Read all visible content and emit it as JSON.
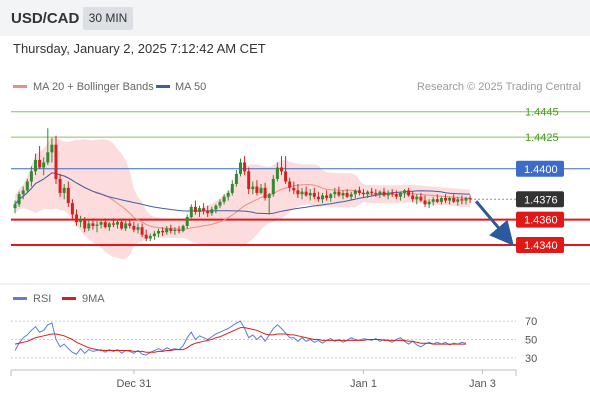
{
  "header": {
    "symbol": "USD/CAD",
    "interval": "30 MIN",
    "datetime": "Thursday, January 2, 2025 7:12:42 AM CET"
  },
  "credit": "Research © 2025 Trading Central",
  "colors": {
    "bollinger_fill": "#fcdcdc",
    "ma20": "#f28b82",
    "ma50": "#3c5ea8",
    "bull": "#2e8b2e",
    "bear": "#d62020",
    "resistance": "#86c45a",
    "pivot": "#3c6cc8",
    "support": "#e01818",
    "rsi": "#5b7fd6",
    "rsi_ma": "#d62020"
  },
  "chart_data": [
    {
      "type": "candlestick",
      "legend": [
        {
          "label": "MA 20 + Bollinger Bands",
          "color": "#f28b82"
        },
        {
          "label": "MA 50",
          "color": "#3c5ea8"
        }
      ],
      "ylim": [
        1.4325,
        1.4455
      ],
      "levels": [
        {
          "value": 1.4445,
          "label": "1.4445",
          "kind": "resistance"
        },
        {
          "value": 1.4425,
          "label": "1.4425",
          "kind": "resistance"
        },
        {
          "value": 1.44,
          "label": "1.4400",
          "kind": "pivot"
        },
        {
          "value": 1.436,
          "label": "1.4360",
          "kind": "support"
        },
        {
          "value": 1.434,
          "label": "1.4340",
          "kind": "support"
        }
      ],
      "last_price": {
        "value": 1.4376,
        "label": "1.4376"
      },
      "forecast_target": 1.434,
      "x_ticks": [
        {
          "label": "Dec 31",
          "index": 29
        },
        {
          "label": "Jan 1",
          "index": 85
        },
        {
          "label": "Jan 3",
          "index": 114
        }
      ],
      "ohlc": [
        [
          1.4369,
          1.4375,
          1.4365,
          1.4372
        ],
        [
          1.4372,
          1.4382,
          1.437,
          1.438
        ],
        [
          1.438,
          1.4386,
          1.4376,
          1.4383
        ],
        [
          1.4383,
          1.4392,
          1.4381,
          1.439
        ],
        [
          1.439,
          1.4402,
          1.4386,
          1.4398
        ],
        [
          1.4398,
          1.4412,
          1.4395,
          1.4407
        ],
        [
          1.4407,
          1.4418,
          1.44,
          1.4401
        ],
        [
          1.4401,
          1.4409,
          1.4395,
          1.4405
        ],
        [
          1.4405,
          1.4432,
          1.4403,
          1.4413
        ],
        [
          1.4413,
          1.4424,
          1.4405,
          1.4419
        ],
        [
          1.4419,
          1.4426,
          1.4388,
          1.4392
        ],
        [
          1.4392,
          1.4396,
          1.4378,
          1.4381
        ],
        [
          1.4381,
          1.4388,
          1.4376,
          1.4385
        ],
        [
          1.4385,
          1.439,
          1.437,
          1.4373
        ],
        [
          1.4373,
          1.4376,
          1.436,
          1.4364
        ],
        [
          1.4364,
          1.4368,
          1.4355,
          1.4358
        ],
        [
          1.4358,
          1.4363,
          1.4354,
          1.436
        ],
        [
          1.436,
          1.4362,
          1.435,
          1.4353
        ],
        [
          1.4353,
          1.436,
          1.4351,
          1.4357
        ],
        [
          1.4357,
          1.4361,
          1.4352,
          1.4355
        ],
        [
          1.4355,
          1.4359,
          1.435,
          1.4356
        ],
        [
          1.4356,
          1.436,
          1.4353,
          1.4358
        ],
        [
          1.4358,
          1.4361,
          1.4353,
          1.4354
        ],
        [
          1.4354,
          1.4358,
          1.4351,
          1.4357
        ],
        [
          1.4357,
          1.4361,
          1.4354,
          1.4356
        ],
        [
          1.4356,
          1.436,
          1.4353,
          1.4358
        ],
        [
          1.4358,
          1.436,
          1.4352,
          1.4353
        ],
        [
          1.4353,
          1.4359,
          1.4351,
          1.4357
        ],
        [
          1.4357,
          1.436,
          1.4353,
          1.4355
        ],
        [
          1.4355,
          1.4358,
          1.435,
          1.4352
        ],
        [
          1.4352,
          1.4357,
          1.4349,
          1.4354
        ],
        [
          1.4354,
          1.4357,
          1.4346,
          1.4348
        ],
        [
          1.4348,
          1.4352,
          1.4343,
          1.4345
        ],
        [
          1.4345,
          1.4349,
          1.4343,
          1.4347
        ],
        [
          1.4347,
          1.4351,
          1.4344,
          1.4349
        ],
        [
          1.4349,
          1.4353,
          1.4346,
          1.4351
        ],
        [
          1.4351,
          1.4354,
          1.4347,
          1.435
        ],
        [
          1.435,
          1.4355,
          1.4348,
          1.4353
        ],
        [
          1.4353,
          1.4356,
          1.4349,
          1.4351
        ],
        [
          1.4351,
          1.4354,
          1.4348,
          1.4352
        ],
        [
          1.4352,
          1.4355,
          1.4349,
          1.4351
        ],
        [
          1.4351,
          1.4356,
          1.435,
          1.4355
        ],
        [
          1.4355,
          1.4364,
          1.4353,
          1.4362
        ],
        [
          1.4362,
          1.4372,
          1.4361,
          1.437
        ],
        [
          1.437,
          1.4375,
          1.4364,
          1.4366
        ],
        [
          1.4366,
          1.4371,
          1.4362,
          1.4369
        ],
        [
          1.4369,
          1.4373,
          1.4364,
          1.4367
        ],
        [
          1.4367,
          1.4371,
          1.4362,
          1.4365
        ],
        [
          1.4365,
          1.437,
          1.4363,
          1.4368
        ],
        [
          1.4368,
          1.4372,
          1.4365,
          1.4371
        ],
        [
          1.4371,
          1.4376,
          1.4369,
          1.4374
        ],
        [
          1.4374,
          1.438,
          1.4372,
          1.4378
        ],
        [
          1.4378,
          1.4383,
          1.4375,
          1.4381
        ],
        [
          1.4381,
          1.4391,
          1.4379,
          1.4388
        ],
        [
          1.4388,
          1.4399,
          1.4386,
          1.4396
        ],
        [
          1.4396,
          1.4408,
          1.4394,
          1.4405
        ],
        [
          1.4405,
          1.441,
          1.4395,
          1.4398
        ],
        [
          1.4398,
          1.4401,
          1.438,
          1.4384
        ],
        [
          1.4384,
          1.439,
          1.438,
          1.4386
        ],
        [
          1.4386,
          1.4391,
          1.4379,
          1.4381
        ],
        [
          1.4381,
          1.4388,
          1.438,
          1.4385
        ],
        [
          1.4385,
          1.4389,
          1.4375,
          1.4377
        ],
        [
          1.4377,
          1.4381,
          1.4364,
          1.438
        ],
        [
          1.438,
          1.4395,
          1.4378,
          1.4392
        ],
        [
          1.4392,
          1.4405,
          1.439,
          1.4401
        ],
        [
          1.4401,
          1.441,
          1.4395,
          1.4398
        ],
        [
          1.4398,
          1.441,
          1.4388,
          1.439
        ],
        [
          1.439,
          1.4393,
          1.4382,
          1.4385
        ],
        [
          1.4385,
          1.439,
          1.438,
          1.4383
        ],
        [
          1.4383,
          1.4388,
          1.4377,
          1.438
        ],
        [
          1.438,
          1.4385,
          1.4376,
          1.4382
        ],
        [
          1.4382,
          1.4386,
          1.4378,
          1.4379
        ],
        [
          1.4379,
          1.4384,
          1.4375,
          1.4381
        ],
        [
          1.4381,
          1.4385,
          1.4376,
          1.4378
        ],
        [
          1.4378,
          1.4382,
          1.4374,
          1.4376
        ],
        [
          1.4376,
          1.4381,
          1.4373,
          1.4379
        ],
        [
          1.4379,
          1.4383,
          1.4375,
          1.4377
        ],
        [
          1.4377,
          1.4381,
          1.4374,
          1.438
        ],
        [
          1.438,
          1.4385,
          1.4377,
          1.4382
        ],
        [
          1.4382,
          1.4386,
          1.4378,
          1.4379
        ],
        [
          1.4379,
          1.4383,
          1.4376,
          1.4381
        ],
        [
          1.4381,
          1.4384,
          1.4377,
          1.4378
        ],
        [
          1.4378,
          1.4382,
          1.4375,
          1.438
        ],
        [
          1.438,
          1.4384,
          1.4377,
          1.4383
        ],
        [
          1.4383,
          1.4386,
          1.4379,
          1.4381
        ],
        [
          1.4381,
          1.4384,
          1.4378,
          1.438
        ],
        [
          1.438,
          1.4383,
          1.4377,
          1.4382
        ],
        [
          1.4382,
          1.4385,
          1.4379,
          1.4381
        ],
        [
          1.4381,
          1.4384,
          1.4378,
          1.438
        ],
        [
          1.438,
          1.4383,
          1.4377,
          1.4382
        ],
        [
          1.4382,
          1.4385,
          1.4378,
          1.4379
        ],
        [
          1.4379,
          1.4383,
          1.4376,
          1.4381
        ],
        [
          1.4381,
          1.4384,
          1.4378,
          1.438
        ],
        [
          1.438,
          1.4383,
          1.4376,
          1.4378
        ],
        [
          1.4378,
          1.4382,
          1.4375,
          1.4381
        ],
        [
          1.4381,
          1.4384,
          1.4377,
          1.4383
        ],
        [
          1.4383,
          1.4385,
          1.4378,
          1.4379
        ],
        [
          1.4379,
          1.4382,
          1.4374,
          1.4376
        ],
        [
          1.4376,
          1.438,
          1.4372,
          1.4378
        ],
        [
          1.4378,
          1.4381,
          1.4374,
          1.4375
        ],
        [
          1.4375,
          1.4379,
          1.437,
          1.4372
        ],
        [
          1.4372,
          1.4376,
          1.4369,
          1.4374
        ],
        [
          1.4374,
          1.4378,
          1.4371,
          1.4376
        ],
        [
          1.4376,
          1.438,
          1.4373,
          1.4374
        ],
        [
          1.4374,
          1.4378,
          1.4372,
          1.4377
        ],
        [
          1.4377,
          1.438,
          1.4373,
          1.4375
        ],
        [
          1.4375,
          1.4378,
          1.4372,
          1.4377
        ],
        [
          1.4377,
          1.438,
          1.4373,
          1.4374
        ],
        [
          1.4374,
          1.4378,
          1.4371,
          1.4376
        ],
        [
          1.4376,
          1.4379,
          1.4372,
          1.4375
        ],
        [
          1.4375,
          1.4378,
          1.4372,
          1.4377
        ],
        [
          1.4377,
          1.4379,
          1.4373,
          1.4376
        ]
      ]
    },
    {
      "type": "line",
      "legend": [
        {
          "label": "RSI",
          "color": "#5b7fd6"
        },
        {
          "label": "9MA",
          "color": "#d62020"
        }
      ],
      "ylim": [
        20,
        80
      ],
      "y_ticks": [
        70,
        50,
        30
      ],
      "rsi": [
        38,
        46,
        52,
        55,
        60,
        64,
        58,
        60,
        66,
        68,
        50,
        42,
        45,
        40,
        36,
        34,
        40,
        35,
        39,
        37,
        38,
        39,
        36,
        39,
        37,
        39,
        35,
        38,
        37,
        35,
        38,
        34,
        33,
        36,
        38,
        40,
        38,
        41,
        39,
        40,
        39,
        43,
        52,
        58,
        50,
        54,
        52,
        50,
        53,
        56,
        58,
        60,
        62,
        65,
        68,
        70,
        62,
        52,
        55,
        50,
        54,
        48,
        55,
        62,
        66,
        62,
        57,
        52,
        52,
        48,
        52,
        48,
        50,
        47,
        49,
        46,
        49,
        51,
        48,
        50,
        47,
        49,
        52,
        50,
        49,
        51,
        50,
        49,
        51,
        48,
        50,
        49,
        47,
        50,
        52,
        48,
        45,
        48,
        44,
        42,
        45,
        47,
        45,
        47,
        45,
        47,
        44,
        46,
        45,
        47,
        46
      ],
      "ma": [
        45,
        46,
        47,
        48,
        50,
        52,
        53,
        54,
        55,
        56,
        56,
        55,
        54,
        52,
        50,
        47,
        45,
        43,
        41,
        40,
        39,
        38,
        38,
        38,
        38,
        38,
        38,
        38,
        38,
        37,
        37,
        37,
        36,
        36,
        36,
        37,
        37,
        38,
        38,
        39,
        39,
        39,
        41,
        44,
        46,
        47,
        48,
        49,
        50,
        52,
        53,
        55,
        57,
        59,
        61,
        63,
        63,
        62,
        61,
        60,
        58,
        56,
        55,
        55,
        56,
        56,
        56,
        55,
        55,
        54,
        53,
        52,
        51,
        50,
        50,
        49,
        49,
        49,
        49,
        49,
        49,
        49,
        49,
        49,
        49,
        49,
        50,
        50,
        50,
        50,
        49,
        49,
        49,
        49,
        49,
        49,
        48,
        48,
        47,
        46,
        46,
        46,
        45,
        45,
        45,
        45,
        45,
        45,
        45,
        45,
        45
      ]
    }
  ]
}
